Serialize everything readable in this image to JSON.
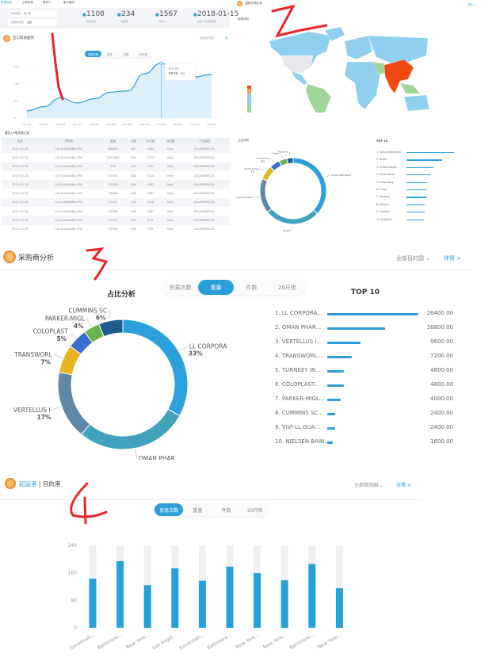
{
  "colors": {
    "accent": "#2b9fd9",
    "annotation": "#e8262a"
  },
  "panel1": {
    "tabs": [
      "贸易分析",
      "公司信息",
      "联系人",
      "客户看约"
    ],
    "filters": [
      {
        "label": "时间范围",
        "value": "近一年"
      },
      {
        "label": "采购商/供应",
        "value": "全部"
      }
    ],
    "stats": [
      {
        "icon": "trade-icon",
        "value": "1108",
        "label": "贸易次数"
      },
      {
        "icon": "supplier-icon",
        "value": "234",
        "label": "供应商"
      },
      {
        "icon": "contact-icon",
        "value": "1567",
        "label": "联系人"
      },
      {
        "icon": "calendar-icon",
        "value": "2018-01-15",
        "label": "最近一次贸易时间"
      }
    ],
    "section_title": "出口贸易趋势",
    "region_select": "全部目的国",
    "detail": "详",
    "chart_tabs": [
      "贸易次数",
      "重量",
      "件数",
      "20尺柜"
    ],
    "active_tab": 0,
    "tooltip": {
      "date": "2017-09",
      "text": "贸易次数：256"
    },
    "table_title": "最近10笔贸易记录",
    "table_headers": [
      "时间",
      "采购商",
      "重量",
      "件数",
      "20尺柜",
      "目的国",
      "产品描述"
    ],
    "table_rows": [
      [
        "2017-02-30",
        "LA GALVANINA SPA",
        "398620",
        "367",
        "4584",
        "Italy",
        "DOLUMIERS25.."
      ],
      [
        "2017-02-30",
        "LA GALVANINA SPA",
        "2252434",
        "354",
        "2323",
        "Italy",
        "DOLUMIERS25.."
      ],
      [
        "2017-02-30",
        "LA GALVANINA SPA",
        "505",
        "354",
        "2132",
        "Italy",
        "DOLUMIERS25.."
      ],
      [
        "2017-02-30",
        "LA GALVANINA SPA",
        "35354",
        "368",
        "2110",
        "Italy",
        "DOLUMIERS25.."
      ],
      [
        "2017-02-30",
        "LA GALVANINA SPA",
        "215203",
        "269",
        "1983",
        "Italy",
        "DOLUMIERS25.."
      ],
      [
        "2017-02-30",
        "LA GALVANINA SPA",
        "32666",
        "246",
        "1987",
        "Italy",
        "DOLUMIERS25.."
      ],
      [
        "2017-02-30",
        "LA GALVANINA SPA",
        "21252",
        "216",
        "1276",
        "Italy",
        "DOLUMIERS25.."
      ],
      [
        "2017-02-30",
        "LA GALVANINA SPA",
        "55568",
        "265",
        "1287",
        "Italy",
        "DOLUMIERS25.."
      ],
      [
        "2017-02-30",
        "LA GALVANINA SPA",
        "55115",
        "353",
        "876",
        "Italy",
        "DOLUMIERS25.."
      ],
      [
        "2017-02-30",
        "LA GALVANINA SPA",
        "55555",
        "308",
        "259",
        "Italy",
        "DOLUMIERS25.."
      ]
    ]
  },
  "panel2": {
    "section_title": "国际市场分析",
    "detail": "详情 >",
    "map_title": "地域分布",
    "share_title": "占比分析",
    "top_title": "TOP 10",
    "top_list": [
      "1. China (Mainland)",
      "2. Brazil",
      "3. United States",
      "4. South Korea",
      "5. Hong Kong",
      "6. Oman",
      "7. Panama",
      "8. Jamaica",
      "9. Vietnam",
      "10.Thailand"
    ],
    "top_bar_fraction": [
      1,
      0.75,
      0.56,
      0.5,
      0.44,
      0.44,
      0.42,
      0.38,
      0.38,
      0.36
    ]
  },
  "panel3": {
    "section_title": "采购商分析",
    "region_select": "全部目的国",
    "detail": "详情 >",
    "share_title": "占比分析",
    "top_title": "TOP 10",
    "tabs": [
      "贸易次数",
      "重量",
      "件数",
      "20尺柜"
    ],
    "active_tab": 1
  },
  "panel4": {
    "section_title": "起运港",
    "section_title2": "| 目的港",
    "region_select": "全部目的国",
    "detail": "详情 >",
    "tabs": [
      "贸易次数",
      "重量",
      "件数",
      "20尺柜"
    ],
    "active_tab": 0
  },
  "chart_data": [
    {
      "type": "area",
      "x": [
        "2017/01",
        "2017/02",
        "2017/03",
        "2017/04",
        "2017/05",
        "2017/06",
        "2017/07",
        "2017/08",
        "2017/09",
        "2017/10",
        "2017/11",
        "2017/12"
      ],
      "values": [
        34,
        53,
        94,
        71,
        90,
        121,
        127,
        207,
        256,
        190,
        192,
        203
      ],
      "yticks": [
        0,
        80,
        160,
        240
      ],
      "ylim": [
        0,
        240
      ],
      "grid": true
    },
    {
      "type": "pie",
      "labels": [
        "China (Mainland)",
        "Brazil",
        "United States",
        "South Korea",
        "Hong Kong",
        "Oman",
        "Panama"
      ],
      "values": [
        37,
        27,
        17,
        7,
        5,
        4,
        3
      ],
      "label_text": [
        "China (Mainland)",
        "Brazil",
        "United States",
        "South Korea\n7%",
        "Hong Kong\n5%",
        "Oman",
        "Panama"
      ],
      "colors": [
        "#2ba0da",
        "#43a2bb",
        "#5f88a6",
        "#e6b420",
        "#3a6fd0",
        "#6cb24a",
        "#1f5b8c"
      ]
    },
    {
      "type": "pie",
      "labels": [
        "LL CORPORA",
        "OMAN PHAR",
        "VERTELLUS I",
        "TRANSWORL",
        "COLOPLAST",
        "PARKER-MIGL",
        "CUMMINS SC"
      ],
      "values": [
        33,
        28,
        17,
        7,
        5,
        4,
        6
      ],
      "colors": [
        "#2ba0da",
        "#43a2bb",
        "#5f88a6",
        "#e6b420",
        "#3a6fd0",
        "#6cb24a",
        "#1f5b8c"
      ]
    },
    {
      "type": "bar",
      "title": "TOP 10",
      "categories": [
        "1. LL CORPORA...",
        "2. OMAN PHAR...",
        "3. VERTELLUS I...",
        "4. TRANSWORL...",
        "5. TURNKEY IN...",
        "6. COLOPLAST...",
        "7. PARKER-MIGL...",
        "8. CUMMINS SC...",
        "9. VIVI-LL GUA...",
        "10. NIELSEN BAIN..."
      ],
      "values": [
        26400,
        16800,
        9600,
        7200,
        4800,
        4800,
        4000,
        2400,
        2400,
        1600
      ],
      "labels": [
        "26400.00",
        "16800.00",
        "9600.00",
        "7200.00",
        "4800.00",
        "4800.00",
        "4000.00",
        "2400.00",
        "2400.00",
        "1600.00"
      ]
    },
    {
      "type": "bar",
      "categories": [
        "Savannah...",
        "Baltimore...",
        "New York...",
        "Los Angel...",
        "Savannah...",
        "Baltimore...",
        "New York...",
        "New York...",
        "Baltimore...",
        "New York..."
      ],
      "values": [
        143,
        194,
        124,
        173,
        137,
        178,
        159,
        138,
        186,
        115
      ],
      "yticks": [
        0,
        80,
        160,
        240
      ],
      "ylim": [
        0,
        240
      ]
    }
  ]
}
